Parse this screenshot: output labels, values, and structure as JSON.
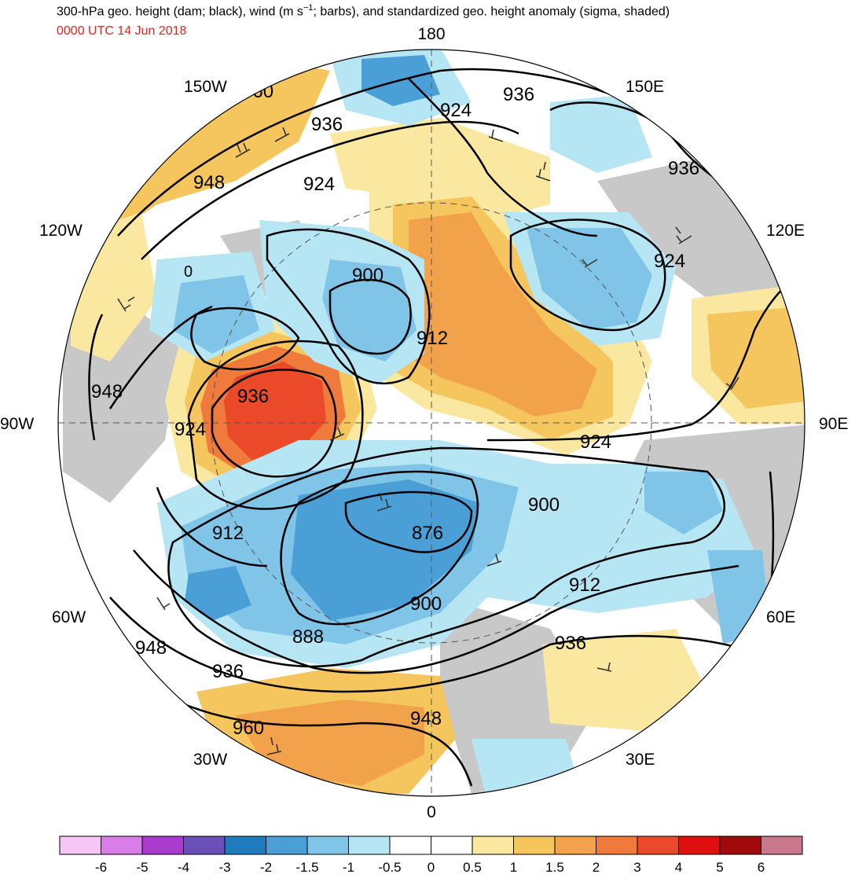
{
  "title_prefix": "300-hPa geo. height (dam; black), wind (m s",
  "title_exp": "−1",
  "title_suffix": "; barbs), and standardized geo. height anomaly (sigma, shaded)",
  "valid_time": "0000 UTC 14 Jun 2018",
  "longitude_labels": {
    "lon_180": "180",
    "lon_150e": "150E",
    "lon_120e": "120E",
    "lon_90e": "90E",
    "lon_60e": "60E",
    "lon_30e": "30E",
    "lon_0": "0",
    "lon_30w": "30W",
    "lon_60w": "60W",
    "lon_90w": "90W",
    "lon_120w": "120W",
    "lon_150w": "150W"
  },
  "contour_labels": [
    "960",
    "936",
    "924",
    "936",
    "948",
    "924",
    "900",
    "912",
    "936",
    "924",
    "924",
    "936",
    "948",
    "924",
    "912",
    "876",
    "900",
    "900",
    "912",
    "888",
    "900",
    "936",
    "948",
    "936",
    "960",
    "948",
    "0"
  ],
  "colorbar": {
    "colors": [
      "#f6c6f6",
      "#d97ee8",
      "#a93ccf",
      "#6a4fb8",
      "#1f7bbd",
      "#4a9fd6",
      "#80c4e8",
      "#b6e6f4",
      "#ffffff",
      "#ffffff",
      "#fae8a0",
      "#f5c55e",
      "#f2a24a",
      "#ef7a3c",
      "#eb4a2a",
      "#e01010",
      "#a00a0a",
      "#c8788a"
    ],
    "tick_labels": [
      "-6",
      "-5",
      "-4",
      "-3",
      "-2",
      "-1.5",
      "-1",
      "-0.5",
      "0",
      "0.5",
      "1",
      "1.5",
      "2",
      "3",
      "4",
      "5",
      "6"
    ]
  },
  "map_colors": {
    "gray_land": "#c8c8c8",
    "pos_weak": "#fae8a0",
    "pos_1": "#f5c55e",
    "pos_2": "#f2a24a",
    "pos_3": "#ef7a3c",
    "pos_4": "#eb4a2a",
    "neg_weak": "#b6e6f4",
    "neg_1": "#80c4e8",
    "neg_2": "#4a9fd6",
    "neg_3": "#1f7bbd"
  }
}
